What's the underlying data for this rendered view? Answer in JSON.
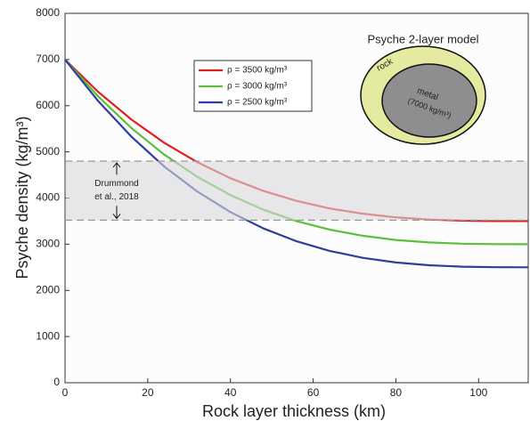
{
  "chart_data": {
    "type": "line",
    "x_label": "Rock layer thickness (km)",
    "y_label": "Psyche density (kg/m³)",
    "x": [
      0,
      8,
      16,
      24,
      32,
      40,
      48,
      56,
      64,
      72,
      80,
      88,
      96,
      104,
      112
    ],
    "series": [
      {
        "name": "ρ = 3500 kg/m³",
        "color": "#e0201b",
        "values": [
          7000,
          6302,
          5704,
          5198,
          4775,
          4430,
          4153,
          3938,
          3775,
          3660,
          3582,
          3534,
          3510,
          3501,
          3500
        ]
      },
      {
        "name": "ρ = 3000 kg/m³",
        "color": "#5bbf3a",
        "values": [
          7000,
          6203,
          5519,
          4940,
          4458,
          4063,
          3746,
          3500,
          3315,
          3182,
          3093,
          3039,
          3012,
          3001,
          3000
        ]
      },
      {
        "name": "ρ = 2500 kg/m³",
        "color": "#2d3f9a",
        "values": [
          7000,
          6103,
          5334,
          4683,
          4140,
          3696,
          3340,
          3063,
          2854,
          2705,
          2605,
          2544,
          2513,
          2502,
          2500
        ]
      }
    ],
    "xlim": [
      0,
      112
    ],
    "ylim": [
      0,
      8000
    ],
    "xticks": [
      0,
      20,
      40,
      60,
      80,
      100
    ],
    "yticks": [
      0,
      1000,
      2000,
      3000,
      4000,
      5000,
      6000,
      7000,
      8000
    ],
    "band": [
      3520,
      4800
    ],
    "band_label": [
      "Drummond",
      "et al., 2018"
    ],
    "inset": {
      "title": "Psyche 2-layer model",
      "outer_label": "rock",
      "inner_label": "metal",
      "inner_sublabel": "(7000 kg/m³)"
    }
  }
}
